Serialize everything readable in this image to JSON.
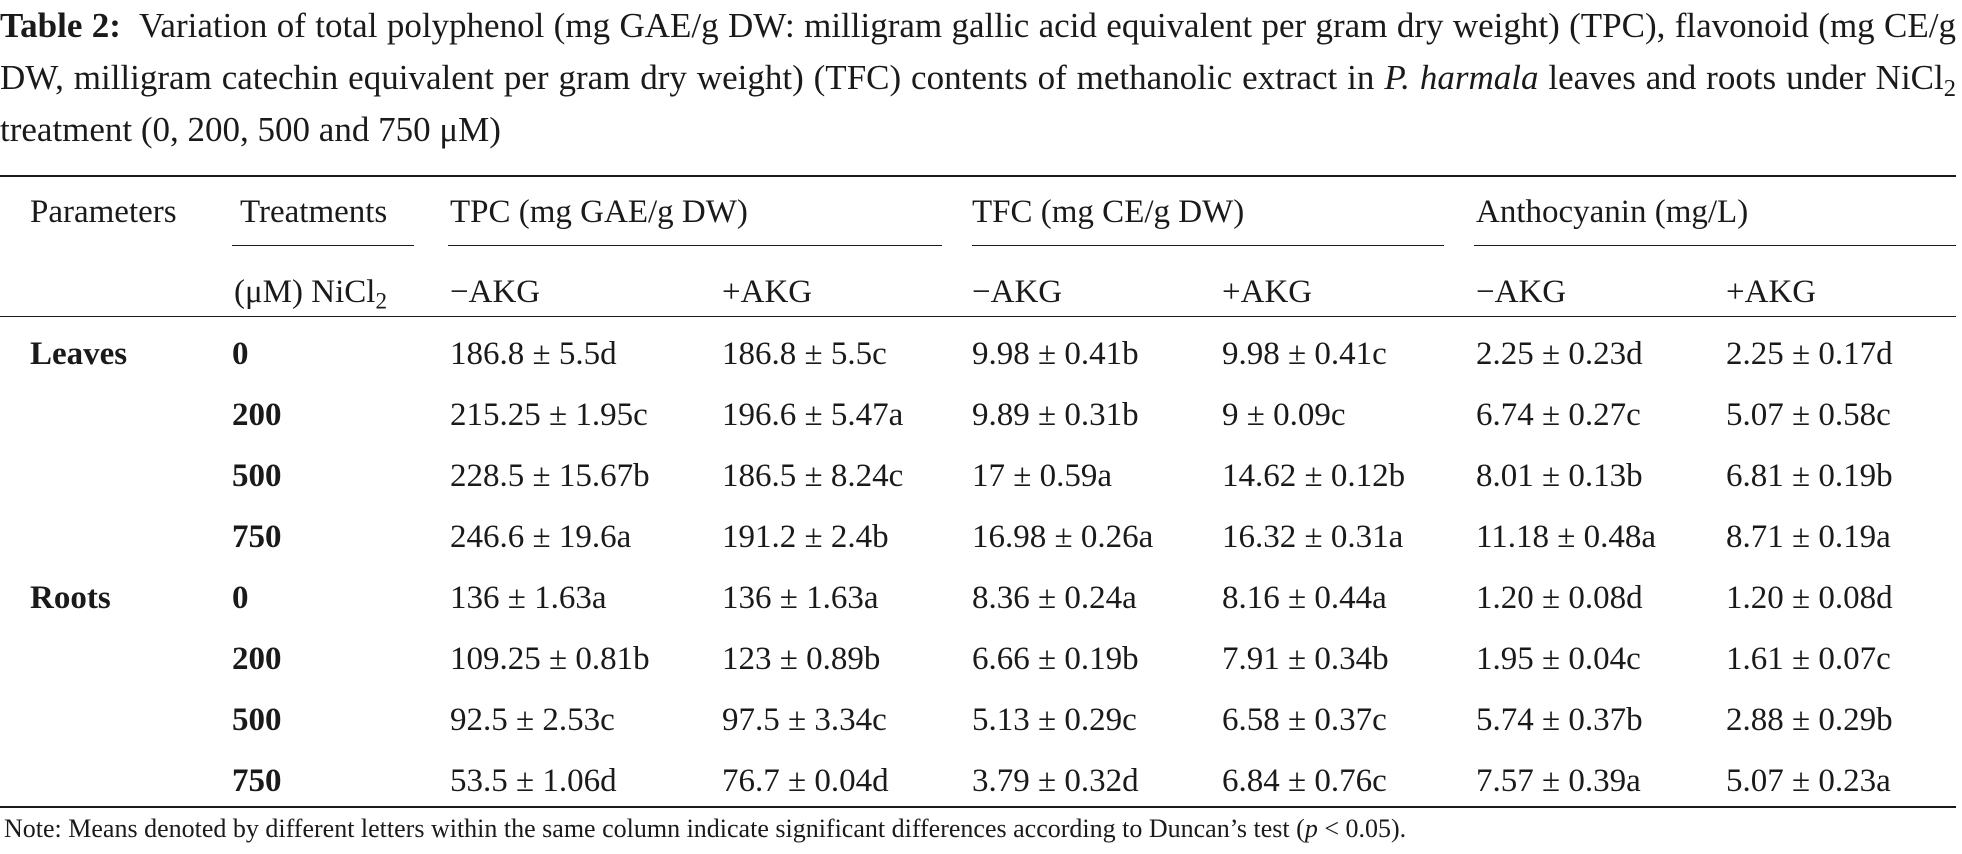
{
  "caption": {
    "label": "Table 2:",
    "text_before_italic": "Variation of total polyphenol (mg GAE/g DW: milligram gallic acid equivalent per gram dry weight) (TPC), flavonoid (mg CE/g DW, milligram catechin equivalent per gram dry weight) (TFC) contents of methanolic extract in ",
    "italic_species": "P. harmala",
    "text_after_italic": " leaves and roots under NiCl",
    "subscript": "2",
    "text_end": " treatment (0, 200, 500 and 750 μM)"
  },
  "headers": {
    "parameters": "Parameters",
    "treatments": "Treatments",
    "treatments_unit": "(μM) NiCl",
    "treatments_unit_sub": "2",
    "tpc": "TPC (mg GAE/g DW)",
    "tfc": "TFC (mg CE/g DW)",
    "anthocyanin": "Anthocyanin (mg/L)",
    "minus_akg": "−AKG",
    "plus_akg": "+AKG"
  },
  "rows": [
    {
      "group": "Leaves",
      "treatment": "0",
      "tpc_minus": "186.8 ± 5.5d",
      "tpc_plus": "186.8 ± 5.5c",
      "tfc_minus": "9.98 ± 0.41b",
      "tfc_plus": "9.98 ± 0.41c",
      "antho_minus": "2.25 ± 0.23d",
      "antho_plus": "2.25 ± 0.17d"
    },
    {
      "group": "",
      "treatment": "200",
      "tpc_minus": "215.25 ± 1.95c",
      "tpc_plus": "196.6 ± 5.47a",
      "tfc_minus": "9.89 ± 0.31b",
      "tfc_plus": "9 ± 0.09c",
      "antho_minus": "6.74 ± 0.27c",
      "antho_plus": "5.07 ± 0.58c"
    },
    {
      "group": "",
      "treatment": "500",
      "tpc_minus": "228.5 ± 15.67b",
      "tpc_plus": "186.5 ± 8.24c",
      "tfc_minus": "17 ± 0.59a",
      "tfc_plus": "14.62 ± 0.12b",
      "antho_minus": "8.01 ± 0.13b",
      "antho_plus": "6.81 ± 0.19b"
    },
    {
      "group": "",
      "treatment": "750",
      "tpc_minus": "246.6 ± 19.6a",
      "tpc_plus": "191.2 ± 2.4b",
      "tfc_minus": "16.98 ± 0.26a",
      "tfc_plus": "16.32 ± 0.31a",
      "antho_minus": "11.18 ± 0.48a",
      "antho_plus": "8.71 ± 0.19a"
    },
    {
      "group": "Roots",
      "treatment": "0",
      "tpc_minus": "136 ± 1.63a",
      "tpc_plus": "136 ± 1.63a",
      "tfc_minus": "8.36 ± 0.24a",
      "tfc_plus": "8.16 ± 0.44a",
      "antho_minus": "1.20 ± 0.08d",
      "antho_plus": "1.20 ± 0.08d"
    },
    {
      "group": "",
      "treatment": "200",
      "tpc_minus": "109.25 ± 0.81b",
      "tpc_plus": "123 ± 0.89b",
      "tfc_minus": "6.66 ± 0.19b",
      "tfc_plus": "7.91 ± 0.34b",
      "antho_minus": "1.95 ± 0.04c",
      "antho_plus": "1.61 ± 0.07c"
    },
    {
      "group": "",
      "treatment": "500",
      "tpc_minus": "92.5 ± 2.53c",
      "tpc_plus": "97.5 ± 3.34c",
      "tfc_minus": "5.13 ± 0.29c",
      "tfc_plus": "6.58 ± 0.37c",
      "antho_minus": "5.74 ± 0.37b",
      "antho_plus": "2.88 ± 0.29b"
    },
    {
      "group": "",
      "treatment": "750",
      "tpc_minus": "53.5 ± 1.06d",
      "tpc_plus": "76.7 ± 0.04d",
      "tfc_minus": "3.79 ± 0.32d",
      "tfc_plus": "6.84 ± 0.76c",
      "antho_minus": "7.57 ± 0.39a",
      "antho_plus": "5.07 ± 0.23a"
    }
  ],
  "note": {
    "before_italic": "Note: Means denoted by different letters within the same column indicate significant differences according to Duncan’s test (",
    "italic": "p",
    "after_italic": " < 0.05)."
  }
}
